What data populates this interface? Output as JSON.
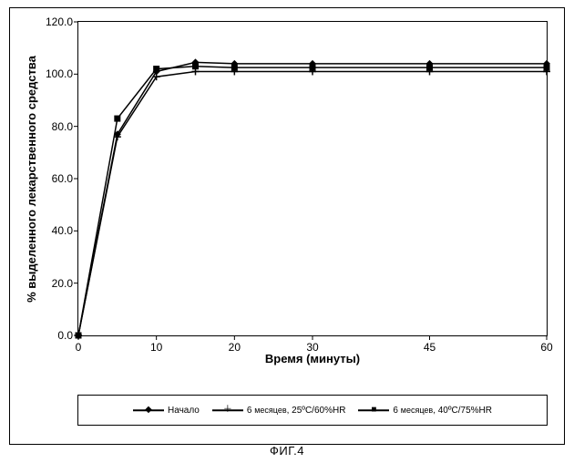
{
  "chart": {
    "type": "line",
    "title": null,
    "x_label": "Время (минуты)",
    "y_label": "% выделенного лекарственного средства",
    "label_fontsize": 13,
    "label_fontweight": "bold",
    "xlim": [
      0,
      60
    ],
    "ylim": [
      0,
      120
    ],
    "x_ticks": [
      0,
      10,
      20,
      30,
      45,
      60
    ],
    "y_ticks": [
      0.0,
      20.0,
      40.0,
      60.0,
      80.0,
      100.0,
      120.0
    ],
    "tick_fontsize": 12,
    "grid": false,
    "background_color": "#ffffff",
    "axis_color": "#000000",
    "line_width": 1.5,
    "series": [
      {
        "key": "start",
        "label": "Начало",
        "marker": "diamond",
        "marker_unicode": "◆",
        "color": "#000000",
        "x": [
          0,
          5,
          10,
          15,
          20,
          30,
          45,
          60
        ],
        "y": [
          0,
          77,
          101,
          104.5,
          104,
          104,
          104,
          104
        ]
      },
      {
        "key": "m6_25_60",
        "label_prefix": "6 ",
        "label_mid": "месяцев",
        "label_suffix": ", 25ºC/60%HR",
        "marker": "plus",
        "marker_unicode": "＋",
        "color": "#000000",
        "x": [
          0,
          5,
          10,
          15,
          20,
          30,
          45,
          60
        ],
        "y": [
          0,
          76,
          99,
          101,
          101,
          101,
          101,
          101
        ]
      },
      {
        "key": "m6_40_75",
        "label_prefix": "6 ",
        "label_mid": "месяцев",
        "label_suffix": ", 40ºC/75%HR",
        "marker": "square",
        "marker_unicode": "■",
        "color": "#000000",
        "x": [
          0,
          5,
          10,
          15,
          20,
          30,
          45,
          60
        ],
        "y": [
          0,
          83,
          102,
          103,
          102.5,
          102.5,
          102.5,
          102.5
        ]
      }
    ]
  },
  "caption": "ФИГ.4"
}
